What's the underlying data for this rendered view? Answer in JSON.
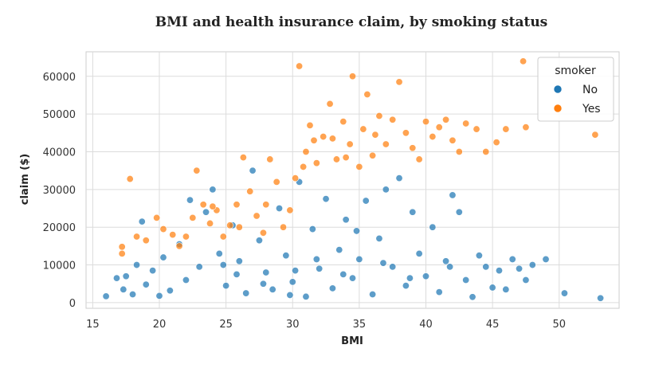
{
  "chart_data": {
    "type": "scatter",
    "title": "BMI and health insurance claim, by smoking status",
    "xlabel": "BMI",
    "ylabel": "claim ($)",
    "xlim": [
      14.5,
      54.5
    ],
    "ylim": [
      -1500,
      66500
    ],
    "xticks": [
      15,
      20,
      25,
      30,
      35,
      40,
      45,
      50
    ],
    "yticks": [
      0,
      10000,
      20000,
      30000,
      40000,
      50000,
      60000
    ],
    "grid": true,
    "legend": {
      "title": "smoker",
      "placement": "top-right"
    },
    "series": [
      {
        "name": "No",
        "color": "#1f77b4",
        "points": [
          [
            16.0,
            1700
          ],
          [
            16.8,
            6500
          ],
          [
            17.3,
            3500
          ],
          [
            17.5,
            7000
          ],
          [
            18.0,
            2200
          ],
          [
            18.3,
            10000
          ],
          [
            18.7,
            21500
          ],
          [
            19.0,
            4800
          ],
          [
            19.5,
            8500
          ],
          [
            20.0,
            1800
          ],
          [
            20.3,
            12000
          ],
          [
            20.8,
            3200
          ],
          [
            21.5,
            15500
          ],
          [
            22.0,
            6000
          ],
          [
            22.3,
            27200
          ],
          [
            23.0,
            9500
          ],
          [
            23.5,
            24000
          ],
          [
            24.0,
            30000
          ],
          [
            24.5,
            13000
          ],
          [
            25.0,
            4500
          ],
          [
            25.5,
            20500
          ],
          [
            26.0,
            11000
          ],
          [
            26.5,
            2500
          ],
          [
            27.0,
            35000
          ],
          [
            27.5,
            16500
          ],
          [
            28.0,
            8000
          ],
          [
            28.5,
            3500
          ],
          [
            29.0,
            25000
          ],
          [
            29.5,
            12500
          ],
          [
            30.0,
            5500
          ],
          [
            30.5,
            32000
          ],
          [
            31.0,
            1600
          ],
          [
            31.5,
            19500
          ],
          [
            32.0,
            9000
          ],
          [
            32.5,
            27500
          ],
          [
            33.0,
            3800
          ],
          [
            33.5,
            14000
          ],
          [
            34.0,
            22000
          ],
          [
            34.5,
            6500
          ],
          [
            35.0,
            11500
          ],
          [
            35.5,
            27000
          ],
          [
            36.0,
            2200
          ],
          [
            36.5,
            17000
          ],
          [
            37.0,
            30000
          ],
          [
            37.5,
            9500
          ],
          [
            38.0,
            33000
          ],
          [
            38.5,
            4500
          ],
          [
            39.0,
            24000
          ],
          [
            39.5,
            13000
          ],
          [
            40.0,
            7000
          ],
          [
            40.5,
            20000
          ],
          [
            41.0,
            2800
          ],
          [
            41.5,
            11000
          ],
          [
            42.0,
            28500
          ],
          [
            42.5,
            24000
          ],
          [
            43.0,
            6000
          ],
          [
            43.5,
            1500
          ],
          [
            44.0,
            12500
          ],
          [
            44.5,
            9500
          ],
          [
            45.0,
            4000
          ],
          [
            45.5,
            8500
          ],
          [
            46.0,
            3500
          ],
          [
            46.5,
            11500
          ],
          [
            47.0,
            9000
          ],
          [
            47.5,
            6000
          ],
          [
            48.0,
            10000
          ],
          [
            49.0,
            11500
          ],
          [
            50.4,
            2500
          ],
          [
            53.1,
            1200
          ],
          [
            34.8,
            19000
          ],
          [
            30.2,
            8500
          ],
          [
            27.8,
            5000
          ],
          [
            25.8,
            7500
          ],
          [
            31.8,
            11500
          ],
          [
            36.8,
            10500
          ],
          [
            33.8,
            7500
          ],
          [
            29.8,
            2000
          ],
          [
            38.8,
            6500
          ],
          [
            41.8,
            9500
          ],
          [
            24.8,
            10000
          ]
        ]
      },
      {
        "name": "Yes",
        "color": "#ff7f0e",
        "points": [
          [
            17.2,
            13000
          ],
          [
            17.2,
            14800
          ],
          [
            17.8,
            32800
          ],
          [
            18.3,
            17500
          ],
          [
            19.0,
            16500
          ],
          [
            19.8,
            22500
          ],
          [
            20.3,
            19500
          ],
          [
            21.0,
            18000
          ],
          [
            21.5,
            15000
          ],
          [
            22.0,
            17500
          ],
          [
            22.5,
            22500
          ],
          [
            22.8,
            35000
          ],
          [
            23.3,
            26000
          ],
          [
            23.8,
            21000
          ],
          [
            24.3,
            24500
          ],
          [
            24.8,
            17500
          ],
          [
            25.3,
            20500
          ],
          [
            25.8,
            26000
          ],
          [
            26.3,
            38500
          ],
          [
            26.8,
            29500
          ],
          [
            27.3,
            23000
          ],
          [
            27.8,
            18500
          ],
          [
            28.3,
            38000
          ],
          [
            28.8,
            32000
          ],
          [
            29.3,
            20000
          ],
          [
            29.8,
            24500
          ],
          [
            30.2,
            33000
          ],
          [
            30.5,
            62700
          ],
          [
            31.0,
            40000
          ],
          [
            31.3,
            47000
          ],
          [
            31.8,
            37000
          ],
          [
            32.3,
            44000
          ],
          [
            32.8,
            52700
          ],
          [
            33.3,
            38000
          ],
          [
            33.8,
            48000
          ],
          [
            34.3,
            42000
          ],
          [
            34.5,
            60000
          ],
          [
            35.0,
            36000
          ],
          [
            35.3,
            46000
          ],
          [
            35.6,
            55200
          ],
          [
            36.0,
            39000
          ],
          [
            36.5,
            49500
          ],
          [
            37.0,
            42000
          ],
          [
            37.5,
            48500
          ],
          [
            38.0,
            58500
          ],
          [
            38.5,
            45000
          ],
          [
            39.0,
            41000
          ],
          [
            39.5,
            38000
          ],
          [
            40.0,
            48000
          ],
          [
            40.5,
            44000
          ],
          [
            41.0,
            46500
          ],
          [
            41.5,
            48500
          ],
          [
            42.0,
            43000
          ],
          [
            42.5,
            40000
          ],
          [
            43.0,
            47500
          ],
          [
            43.8,
            46000
          ],
          [
            44.5,
            40000
          ],
          [
            45.3,
            42500
          ],
          [
            46.0,
            46000
          ],
          [
            47.3,
            64000
          ],
          [
            47.5,
            46500
          ],
          [
            52.7,
            44500
          ],
          [
            33.0,
            43500
          ],
          [
            34.0,
            38500
          ],
          [
            36.2,
            44500
          ],
          [
            30.8,
            36000
          ],
          [
            31.6,
            43000
          ],
          [
            28.0,
            26000
          ],
          [
            26.0,
            20000
          ],
          [
            24.0,
            25500
          ]
        ]
      }
    ]
  }
}
